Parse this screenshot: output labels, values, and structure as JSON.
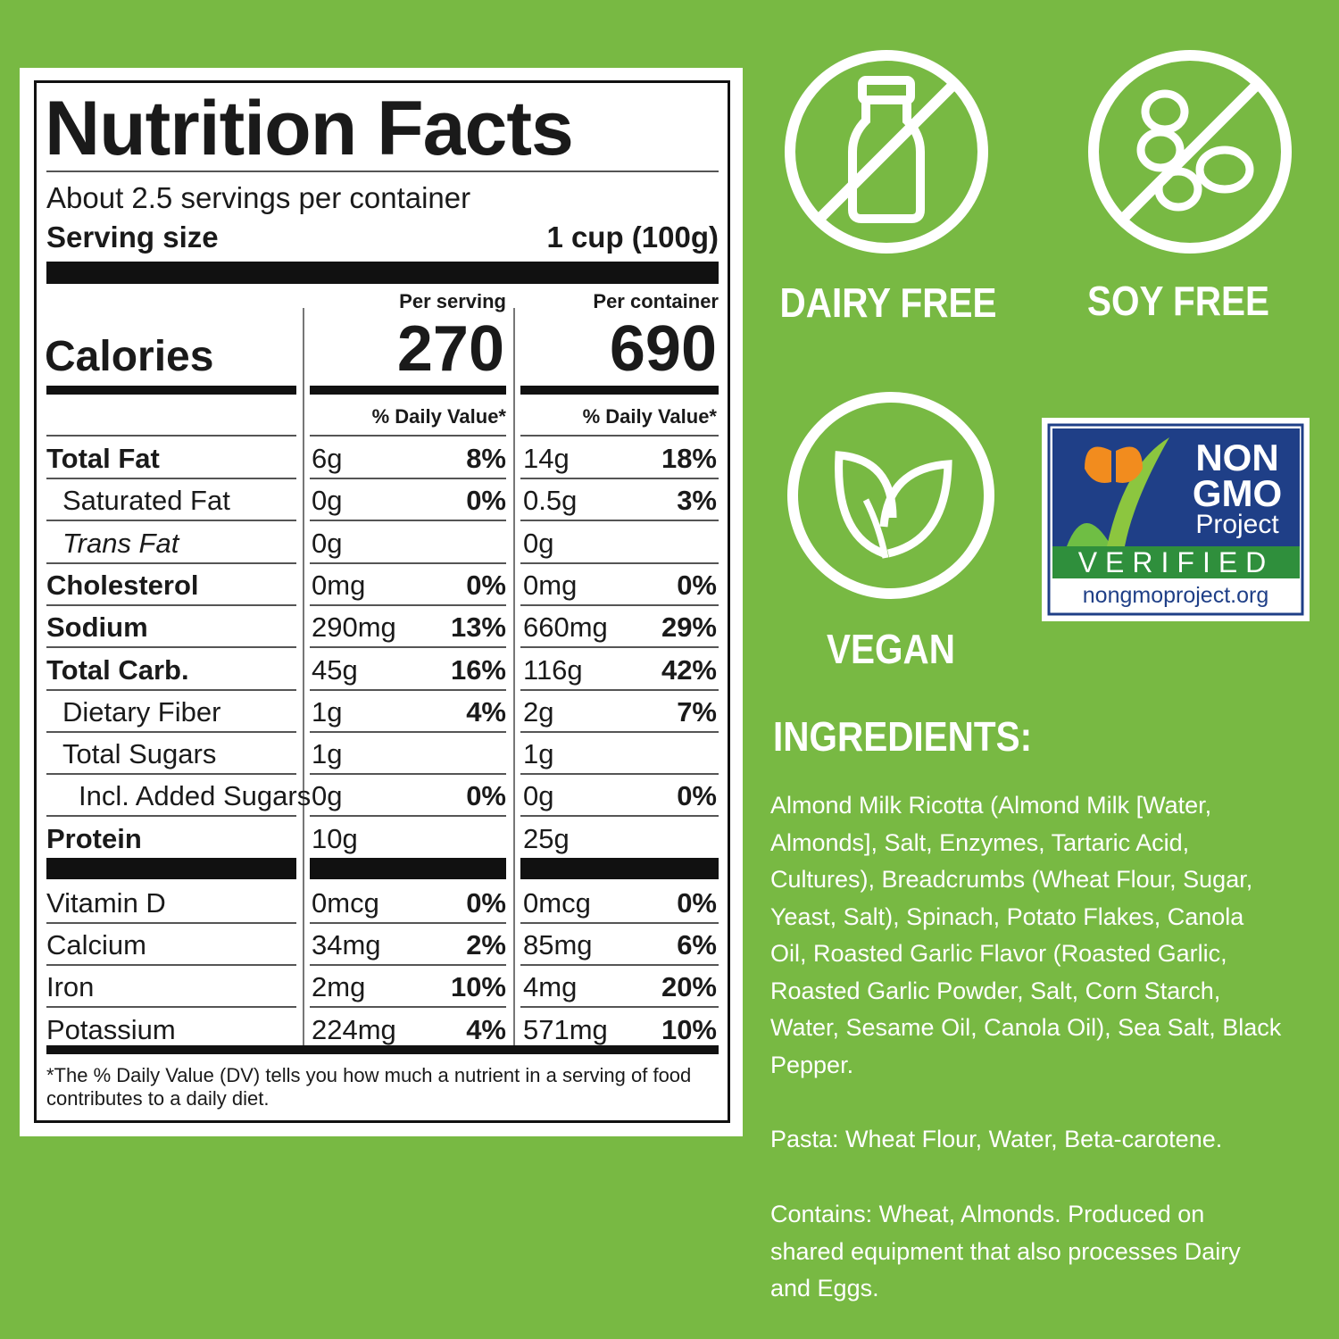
{
  "nutrition": {
    "title": "Nutrition Facts",
    "servings": "About 2.5 servings per container",
    "serving_size_label": "Serving size",
    "serving_size": "1 cup (100g)",
    "per_serving": "Per serving",
    "per_container": "Per container",
    "calories_label": "Calories",
    "calories_serving": "270",
    "calories_container": "690",
    "dv_header": "% Daily Value*",
    "rows": [
      {
        "nutrient": "Total Fat",
        "serving_amount": "6g",
        "serving_dv": "8%",
        "container_amount": "14g",
        "container_dv": "18%"
      },
      {
        "nutrient": "Saturated Fat",
        "serving_amount": "0g",
        "serving_dv": "0%",
        "container_amount": "0.5g",
        "container_dv": "3%"
      },
      {
        "nutrient": "Trans Fat",
        "serving_amount": "0g",
        "container_amount": "0g"
      },
      {
        "nutrient": "Cholesterol",
        "serving_amount": "0mg",
        "serving_dv": "0%",
        "container_amount": "0mg",
        "container_dv": "0%"
      },
      {
        "nutrient": "Sodium",
        "serving_amount": "290mg",
        "serving_dv": "13%",
        "container_amount": "660mg",
        "container_dv": "29%"
      },
      {
        "nutrient": "Total Carb.",
        "serving_amount": "45g",
        "serving_dv": "16%",
        "container_amount": "116g",
        "container_dv": "42%"
      },
      {
        "nutrient": "Dietary Fiber",
        "serving_amount": "1g",
        "serving_dv": "4%",
        "container_amount": "2g",
        "container_dv": "7%"
      },
      {
        "nutrient": "Total Sugars",
        "serving_amount": "1g",
        "container_amount": "1g"
      },
      {
        "nutrient": "Incl. Added Sugars",
        "serving_amount": "0g",
        "serving_dv": "0%",
        "container_amount": "0g",
        "container_dv": "0%"
      },
      {
        "nutrient": "Protein",
        "serving_amount": "10g",
        "container_amount": "25g"
      }
    ],
    "vitamins": [
      {
        "nutrient": "Vitamin D",
        "serving_amount": "0mcg",
        "serving_dv": "0%",
        "container_amount": "0mcg",
        "container_dv": "0%"
      },
      {
        "nutrient": "Calcium",
        "serving_amount": "34mg",
        "serving_dv": "2%",
        "container_amount": "85mg",
        "container_dv": "6%"
      },
      {
        "nutrient": "Iron",
        "serving_amount": "2mg",
        "serving_dv": "10%",
        "container_amount": "4mg",
        "container_dv": "20%"
      },
      {
        "nutrient": "Potassium",
        "serving_amount": "224mg",
        "serving_dv": "4%",
        "container_amount": "571mg",
        "container_dv": "10%"
      }
    ],
    "footnote": "*The % Daily Value (DV) tells you how much a nutrient in a serving of food contributes to a daily diet."
  },
  "badges": [
    "DAIRY FREE",
    "SOY FREE",
    "VEGAN"
  ],
  "non_gmo": {
    "line1": "NON",
    "line2": "GMO",
    "line3": "Project",
    "verified": "VERIFIED",
    "url": "nongmoproject.org"
  },
  "ingredients": {
    "heading": "INGREDIENTS:",
    "paragraphs": [
      "Almond Milk Ricotta (Almond Milk [Water, Almonds], Salt, Enzymes, Tartaric Acid, Cultures), Breadcrumbs (Wheat Flour, Sugar, Yeast, Salt), Spinach, Potato Flakes, Canola Oil, Roasted Garlic Flavor (Roasted Garlic, Roasted Garlic Powder, Salt, Corn Starch, Water, Sesame Oil, Canola Oil), Sea Salt, Black Pepper.",
      "Pasta: Wheat Flour, Water, Beta-carotene.",
      "Contains: Wheat, Almonds. Produced on shared equipment that also processes Dairy and Eggs."
    ]
  }
}
